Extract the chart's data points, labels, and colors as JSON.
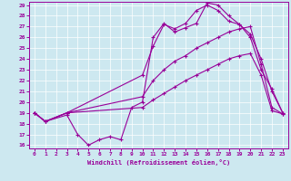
{
  "bg_color": "#cde8f0",
  "line_color": "#990099",
  "ylim": [
    16,
    29
  ],
  "xlim": [
    -0.5,
    23.5
  ],
  "yticks": [
    16,
    17,
    18,
    19,
    20,
    21,
    22,
    23,
    24,
    25,
    26,
    27,
    28,
    29
  ],
  "xticks": [
    0,
    1,
    2,
    3,
    4,
    5,
    6,
    7,
    8,
    9,
    10,
    11,
    12,
    13,
    14,
    15,
    16,
    17,
    18,
    19,
    20,
    21,
    22,
    23
  ],
  "xlabel": "Windchill (Refroidissement éolien,°C)",
  "lines": [
    {
      "x": [
        0,
        1,
        3,
        4,
        5,
        6,
        7,
        8,
        9,
        10,
        11,
        12,
        13,
        14,
        15,
        16,
        17,
        18,
        19,
        20,
        21,
        22,
        23
      ],
      "y": [
        19,
        18.2,
        18.8,
        17.0,
        16.0,
        16.5,
        16.8,
        16.5,
        19.5,
        20.0,
        26.0,
        27.3,
        26.5,
        26.9,
        27.3,
        29.2,
        29.0,
        28.0,
        27.2,
        26.3,
        24.0,
        21.0,
        19.0
      ]
    },
    {
      "x": [
        0,
        1,
        3,
        10,
        11,
        12,
        13,
        14,
        15,
        16,
        17,
        18,
        19,
        20,
        21,
        22,
        23
      ],
      "y": [
        19,
        18.2,
        19.0,
        22.5,
        25.2,
        27.2,
        26.8,
        27.3,
        28.5,
        29.0,
        28.5,
        27.5,
        27.2,
        26.0,
        23.0,
        21.2,
        19.0
      ]
    },
    {
      "x": [
        0,
        1,
        3,
        10,
        11,
        12,
        13,
        14,
        15,
        16,
        17,
        18,
        19,
        20,
        21,
        22,
        23
      ],
      "y": [
        19,
        18.2,
        19.0,
        20.5,
        22.0,
        23.0,
        23.8,
        24.3,
        25.0,
        25.5,
        26.0,
        26.5,
        26.8,
        27.0,
        23.5,
        19.5,
        18.9
      ]
    },
    {
      "x": [
        0,
        1,
        3,
        10,
        11,
        12,
        13,
        14,
        15,
        16,
        17,
        18,
        19,
        20,
        21,
        22,
        23
      ],
      "y": [
        19,
        18.2,
        19.0,
        19.5,
        20.2,
        20.8,
        21.4,
        22.0,
        22.5,
        23.0,
        23.5,
        24.0,
        24.3,
        24.5,
        22.5,
        19.2,
        18.9
      ]
    }
  ]
}
